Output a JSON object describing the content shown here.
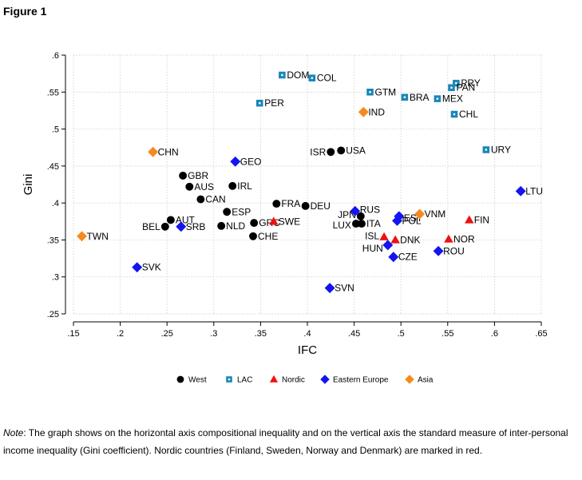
{
  "figure_title": "Figure 1",
  "note_label": "Note",
  "note_text": ": The graph shows on the horizontal axis compositional inequality and on the vertical axis the standard measure of inter-personal income inequality (Gini coefficient). Nordic countries (Finland, Sweden, Norway and Denmark) are marked in red.",
  "chart_data": {
    "type": "scatter",
    "title": "",
    "xlabel": "IFC",
    "ylabel": "Gini",
    "xlim": [
      0.15,
      0.65
    ],
    "ylim": [
      0.25,
      0.6
    ],
    "xticks": [
      ".15",
      ".2",
      ".25",
      ".3",
      ".35",
      ".4",
      ".45",
      ".5",
      ".55",
      ".6",
      ".65"
    ],
    "yticks": [
      ".25",
      ".3",
      ".35",
      ".4",
      ".45",
      ".5",
      ".55",
      ".6"
    ],
    "grid": true,
    "legend_position": "bottom",
    "series": [
      {
        "name": "West",
        "marker": "circle",
        "color": "#000000",
        "points": [
          {
            "label": "GBR",
            "x": 0.267,
            "y": 0.437
          },
          {
            "label": "AUS",
            "x": 0.274,
            "y": 0.422
          },
          {
            "label": "IRL",
            "x": 0.32,
            "y": 0.423
          },
          {
            "label": "CAN",
            "x": 0.286,
            "y": 0.405
          },
          {
            "label": "ESP",
            "x": 0.314,
            "y": 0.388
          },
          {
            "label": "AUT",
            "x": 0.254,
            "y": 0.377
          },
          {
            "label": "BEL",
            "x": 0.248,
            "y": 0.368
          },
          {
            "label": "NLD",
            "x": 0.308,
            "y": 0.369
          },
          {
            "label": "GRC",
            "x": 0.343,
            "y": 0.373
          },
          {
            "label": "CHE",
            "x": 0.342,
            "y": 0.355
          },
          {
            "label": "FRA",
            "x": 0.367,
            "y": 0.399
          },
          {
            "label": "DEU",
            "x": 0.398,
            "y": 0.396
          },
          {
            "label": "ISR",
            "x": 0.425,
            "y": 0.469
          },
          {
            "label": "USA",
            "x": 0.436,
            "y": 0.471
          },
          {
            "label": "LUX",
            "x": 0.452,
            "y": 0.372
          },
          {
            "label": "ITA",
            "x": 0.458,
            "y": 0.372
          },
          {
            "label": "JPN",
            "x": 0.457,
            "y": 0.382
          }
        ]
      },
      {
        "name": "LAC",
        "marker": "square",
        "color": "#1a86b8",
        "points": [
          {
            "label": "DOM",
            "x": 0.373,
            "y": 0.573
          },
          {
            "label": "COL",
            "x": 0.405,
            "y": 0.569
          },
          {
            "label": "PER",
            "x": 0.349,
            "y": 0.535
          },
          {
            "label": "GTM",
            "x": 0.467,
            "y": 0.55
          },
          {
            "label": "BRA",
            "x": 0.504,
            "y": 0.543
          },
          {
            "label": "MEX",
            "x": 0.539,
            "y": 0.541
          },
          {
            "label": "PRY",
            "x": 0.559,
            "y": 0.562
          },
          {
            "label": "PAN",
            "x": 0.554,
            "y": 0.556
          },
          {
            "label": "CHL",
            "x": 0.557,
            "y": 0.52
          },
          {
            "label": "URY",
            "x": 0.591,
            "y": 0.472
          }
        ]
      },
      {
        "name": "Nordic",
        "marker": "triangle",
        "color": "#ee1111",
        "points": [
          {
            "label": "SWE",
            "x": 0.364,
            "y": 0.375
          },
          {
            "label": "FIN",
            "x": 0.573,
            "y": 0.377
          },
          {
            "label": "NOR",
            "x": 0.551,
            "y": 0.351
          },
          {
            "label": "ISL",
            "x": 0.482,
            "y": 0.354
          },
          {
            "label": "DNK",
            "x": 0.494,
            "y": 0.35
          }
        ]
      },
      {
        "name": "Eastern Europe",
        "marker": "diamond",
        "color": "#1414f0",
        "points": [
          {
            "label": "GEO",
            "x": 0.323,
            "y": 0.456
          },
          {
            "label": "SRB",
            "x": 0.265,
            "y": 0.368
          },
          {
            "label": "SVK",
            "x": 0.218,
            "y": 0.313
          },
          {
            "label": "SVN",
            "x": 0.424,
            "y": 0.285
          },
          {
            "label": "RUS",
            "x": 0.451,
            "y": 0.389
          },
          {
            "label": "EST",
            "x": 0.498,
            "y": 0.382
          },
          {
            "label": "POL",
            "x": 0.496,
            "y": 0.376
          },
          {
            "label": "HUN",
            "x": 0.486,
            "y": 0.343
          },
          {
            "label": "CZE",
            "x": 0.492,
            "y": 0.327
          },
          {
            "label": "ROU",
            "x": 0.54,
            "y": 0.335
          },
          {
            "label": "LTU",
            "x": 0.628,
            "y": 0.416
          }
        ]
      },
      {
        "name": "Asia",
        "marker": "diamond",
        "color": "#f58a1f",
        "points": [
          {
            "label": "CHN",
            "x": 0.235,
            "y": 0.469
          },
          {
            "label": "TWN",
            "x": 0.159,
            "y": 0.355
          },
          {
            "label": "IND",
            "x": 0.46,
            "y": 0.523
          },
          {
            "label": "VNM",
            "x": 0.52,
            "y": 0.385
          }
        ]
      }
    ]
  }
}
